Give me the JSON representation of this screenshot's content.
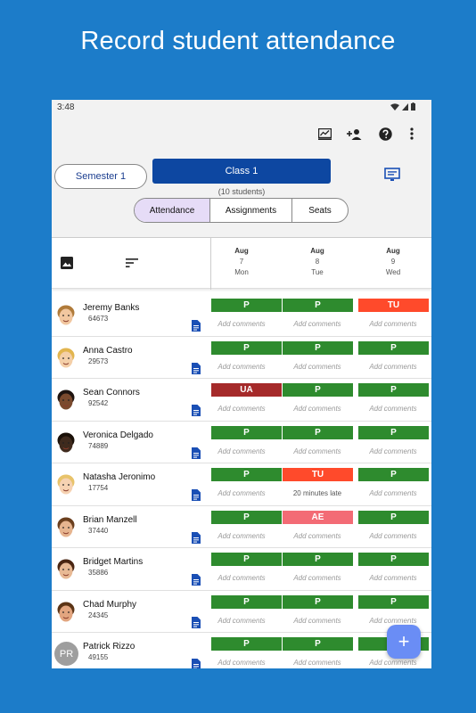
{
  "headline": "Record student attendance",
  "status_bar": {
    "time": "3:48"
  },
  "toolbar": {
    "icons": [
      "chart-icon",
      "add-person-icon",
      "help-icon",
      "more-icon"
    ]
  },
  "semester_label": "Semester 1",
  "class_label": "Class 1",
  "class_count": "(10 students)",
  "tabs": [
    {
      "label": "Attendance",
      "active": true
    },
    {
      "label": "Assignments",
      "active": false
    },
    {
      "label": "Seats",
      "active": false
    }
  ],
  "dates": [
    {
      "month": "Aug",
      "day": "7",
      "weekday": "Mon"
    },
    {
      "month": "Aug",
      "day": "8",
      "weekday": "Tue"
    },
    {
      "month": "Aug",
      "day": "9",
      "weekday": "Wed"
    }
  ],
  "status_colors": {
    "P": "#2e8b2e",
    "TU": "#ff4a2b",
    "UA": "#a52a2a",
    "AE": "#f36b75"
  },
  "comment_placeholder": "Add comments",
  "students": [
    {
      "name": "Jeremy Banks",
      "id": "64673",
      "attendance": [
        "P",
        "P",
        "TU"
      ],
      "comments": [
        "",
        "",
        ""
      ]
    },
    {
      "name": "Anna Castro",
      "id": "29573",
      "attendance": [
        "P",
        "P",
        "P"
      ],
      "comments": [
        "",
        "",
        ""
      ]
    },
    {
      "name": "Sean Connors",
      "id": "92542",
      "attendance": [
        "UA",
        "P",
        "P"
      ],
      "comments": [
        "",
        "",
        ""
      ]
    },
    {
      "name": "Veronica Delgado",
      "id": "74889",
      "attendance": [
        "P",
        "P",
        "P"
      ],
      "comments": [
        "",
        "",
        ""
      ]
    },
    {
      "name": "Natasha Jeronimo",
      "id": "17754",
      "attendance": [
        "P",
        "TU",
        "P"
      ],
      "comments": [
        "",
        "20 minutes late",
        ""
      ]
    },
    {
      "name": "Brian Manzell",
      "id": "37440",
      "attendance": [
        "P",
        "AE",
        "P"
      ],
      "comments": [
        "",
        "",
        ""
      ]
    },
    {
      "name": "Bridget Martins",
      "id": "35886",
      "attendance": [
        "P",
        "P",
        "P"
      ],
      "comments": [
        "",
        "",
        ""
      ]
    },
    {
      "name": "Chad Murphy",
      "id": "24345",
      "attendance": [
        "P",
        "P",
        "P"
      ],
      "comments": [
        "",
        "",
        ""
      ]
    },
    {
      "name": "Patrick Rizzo",
      "id": "49155",
      "initials": "PR",
      "attendance": [
        "P",
        "P",
        "P"
      ],
      "comments": [
        "",
        "",
        ""
      ]
    }
  ],
  "fab_label": "+"
}
